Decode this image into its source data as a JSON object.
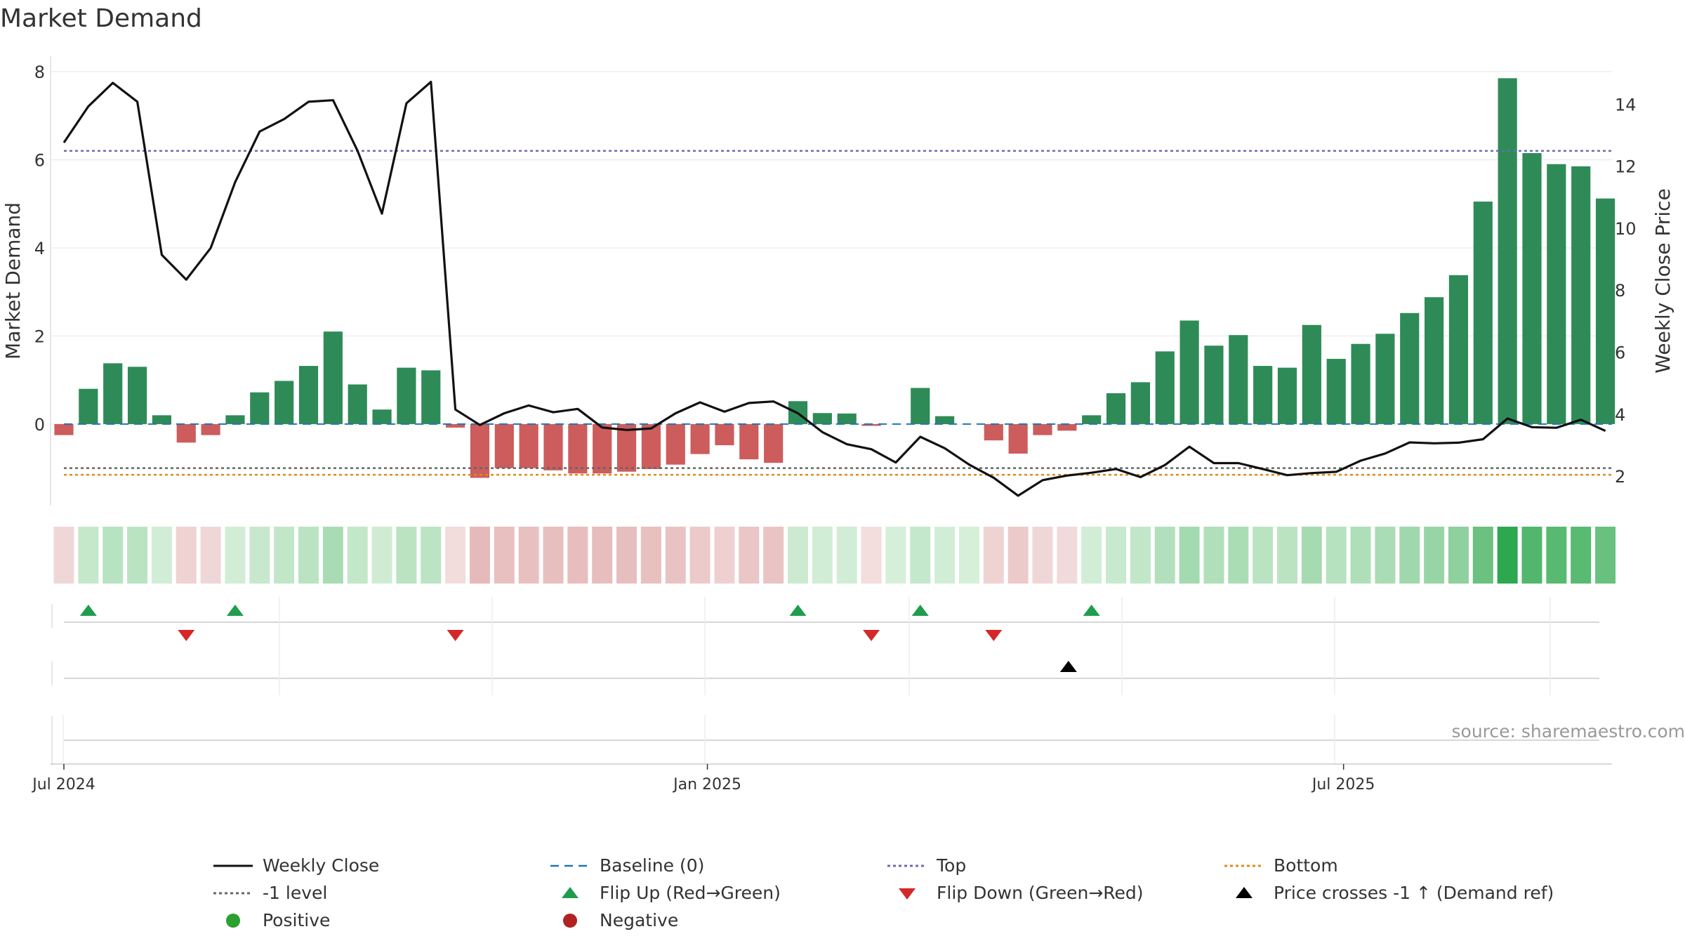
{
  "title": "Market Demand",
  "chart_data": {
    "type": "bar",
    "title": "Market Demand",
    "ylabel_left": "Market Demand",
    "ylabel_right": "Weekly Close Price",
    "source": "source: sharemaestro.com",
    "ylim_left": [
      -1.85,
      8.35
    ],
    "ylim_right": [
      1.05,
      15.55
    ],
    "yticks_left": [
      "8",
      "6",
      "4",
      "2",
      "0"
    ],
    "ytick_values_left": [
      8,
      6,
      4,
      2,
      0
    ],
    "yticks_right": [
      "14",
      "12",
      "10",
      "8",
      "6",
      "4",
      "2"
    ],
    "ytick_values_right": [
      14,
      12,
      10,
      8,
      6,
      4,
      2
    ],
    "x_tick_labels": [
      "Jul 2024",
      "Jan 2025",
      "Jul 2025"
    ],
    "x_tick_weeks": [
      0,
      26.3,
      52.3
    ],
    "levels": {
      "baseline": 0,
      "top": 6.2,
      "bottom": -1.15,
      "minus_one": -1
    },
    "demand": [
      -0.25,
      0.8,
      1.38,
      1.3,
      0.2,
      -0.42,
      -0.25,
      0.2,
      0.72,
      0.98,
      1.32,
      2.1,
      0.9,
      0.33,
      1.28,
      1.22,
      -0.08,
      -1.22,
      -1.0,
      -1.0,
      -1.05,
      -1.12,
      -1.12,
      -1.08,
      -1.02,
      -0.92,
      -0.68,
      -0.48,
      -0.8,
      -0.88,
      0.52,
      0.25,
      0.24,
      -0.04,
      0.0,
      0.82,
      0.18,
      0.0,
      -0.37,
      -0.67,
      -0.25,
      -0.15,
      0.2,
      0.7,
      0.95,
      1.65,
      2.35,
      1.78,
      2.02,
      1.32,
      1.28,
      2.25,
      1.48,
      1.82,
      2.05,
      2.52,
      2.88,
      3.38,
      5.05,
      7.85,
      6.15,
      5.9,
      5.85,
      5.12
    ],
    "close": [
      12.76,
      13.93,
      14.69,
      14.08,
      9.14,
      8.34,
      9.36,
      11.49,
      13.12,
      13.52,
      14.08,
      14.13,
      12.5,
      10.47,
      14.03,
      14.72,
      4.15,
      3.65,
      4.03,
      4.28,
      4.06,
      4.17,
      3.57,
      3.49,
      3.54,
      4.03,
      4.38,
      4.08,
      4.36,
      4.41,
      4.03,
      3.42,
      3.03,
      2.87,
      2.44,
      3.27,
      2.9,
      2.37,
      1.95,
      1.37,
      1.87,
      2.02,
      2.11,
      2.23,
      1.97,
      2.36,
      2.95,
      2.42,
      2.42,
      2.23,
      2.03,
      2.1,
      2.14,
      2.5,
      2.73,
      3.09,
      3.06,
      3.08,
      3.19,
      3.86,
      3.58,
      3.56,
      3.82,
      3.46
    ],
    "flip_up_weeks": [
      1,
      7,
      30,
      35,
      42
    ],
    "flip_down_weeks": [
      5,
      16,
      33,
      38
    ],
    "price_cross_weeks": [
      41
    ]
  },
  "legend": [
    {
      "label": "Weekly Close",
      "symbol": "solid-line",
      "color": "#111111"
    },
    {
      "label": "Baseline (0)",
      "symbol": "dashed-line",
      "color": "#1f77b4"
    },
    {
      "label": "Top",
      "symbol": "dotted-line",
      "color": "#6b6bb5"
    },
    {
      "label": "Bottom",
      "symbol": "dotted-line",
      "color": "#e08a18"
    },
    {
      "label": "-1 level",
      "symbol": "dotted-line",
      "color": "#666666"
    },
    {
      "label": "Flip Up (Red→Green)",
      "symbol": "triangle-up",
      "color": "#1f9d4c"
    },
    {
      "label": "Flip Down (Green→Red)",
      "symbol": "triangle-down",
      "color": "#d62728"
    },
    {
      "label": "Price crosses -1 ↑ (Demand ref)",
      "symbol": "triangle-up",
      "color": "#000000"
    },
    {
      "label": "Positive",
      "symbol": "circle",
      "color": "#2ca02c"
    },
    {
      "label": "Negative",
      "symbol": "circle",
      "color": "#b22222"
    }
  ],
  "colors": {
    "positive_bar": "#2e8b57",
    "negative_bar": "#cd5c5c",
    "close_line": "#111111"
  }
}
